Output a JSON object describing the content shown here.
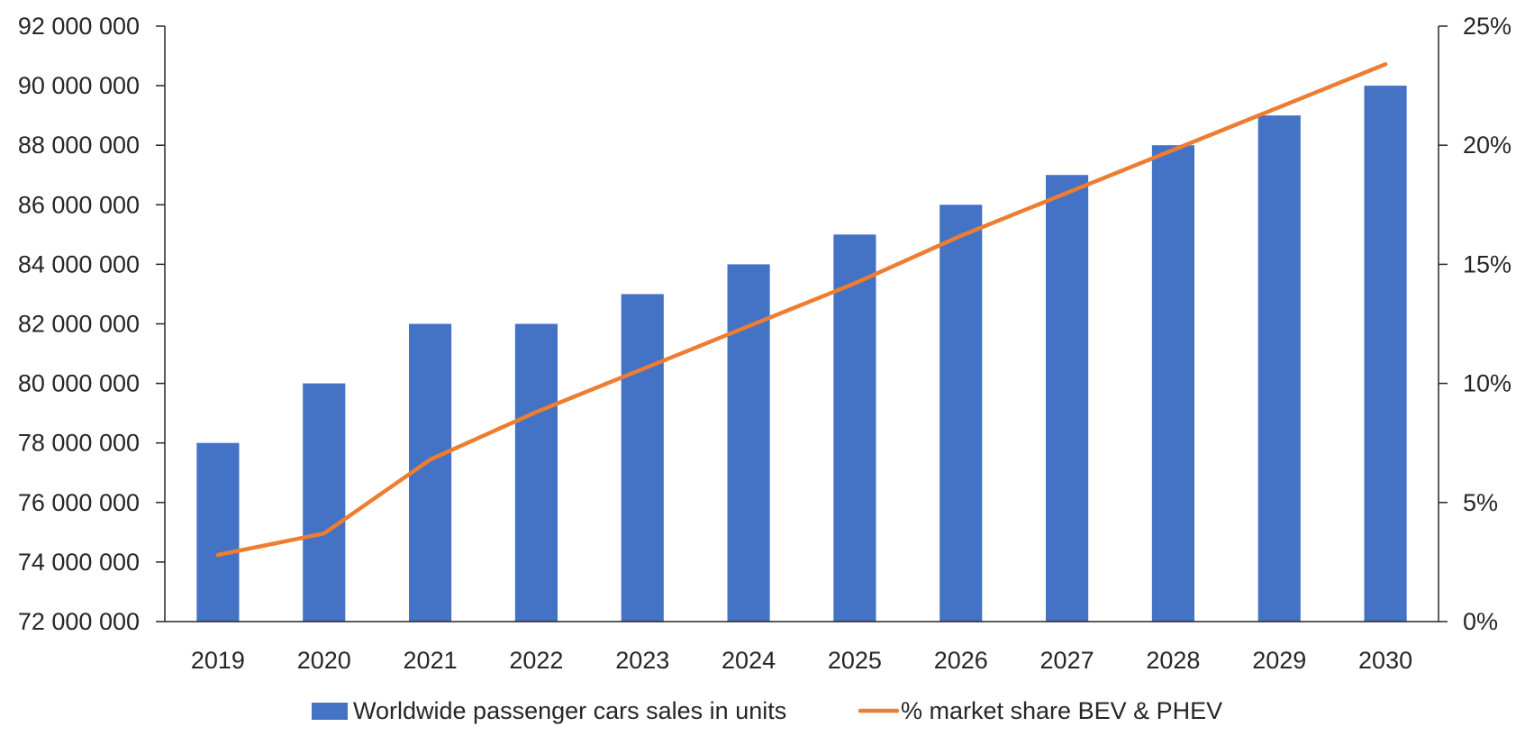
{
  "chart_data": {
    "type": "bar",
    "categories": [
      "2019",
      "2020",
      "2021",
      "2022",
      "2023",
      "2024",
      "2025",
      "2026",
      "2027",
      "2028",
      "2029",
      "2030"
    ],
    "series": [
      {
        "name": "Worldwide passenger cars sales in units",
        "type": "bar",
        "axis": "left",
        "color": "#4472C4",
        "values": [
          78000000,
          80000000,
          82000000,
          82000000,
          83000000,
          84000000,
          85000000,
          86000000,
          87000000,
          88000000,
          89000000,
          90000000
        ]
      },
      {
        "name": "% market share BEV & PHEV",
        "type": "line",
        "axis": "right",
        "color": "#ED7D31",
        "values": [
          2.8,
          3.7,
          6.8,
          8.8,
          10.6,
          12.4,
          14.2,
          16.2,
          18.0,
          19.8,
          21.6,
          23.4
        ]
      }
    ],
    "y_left": {
      "ylim": [
        72000000,
        92000000
      ],
      "ticks": [
        72000000,
        74000000,
        76000000,
        78000000,
        80000000,
        82000000,
        84000000,
        86000000,
        88000000,
        90000000,
        92000000
      ],
      "tick_labels": [
        "72 000 000",
        "74 000 000",
        "76 000 000",
        "78 000 000",
        "80 000 000",
        "82 000 000",
        "84 000 000",
        "86 000 000",
        "88 000 000",
        "90 000 000",
        "92 000 000"
      ]
    },
    "y_right": {
      "ylim": [
        0,
        25
      ],
      "ticks": [
        0,
        5,
        10,
        15,
        20,
        25
      ],
      "tick_labels": [
        "0%",
        "5%",
        "10%",
        "15%",
        "20%",
        "25%"
      ]
    },
    "legend": {
      "placement": "bottom-center",
      "entries": [
        "Worldwide passenger cars sales in units",
        "% market share BEV & PHEV"
      ]
    },
    "grid": false
  }
}
